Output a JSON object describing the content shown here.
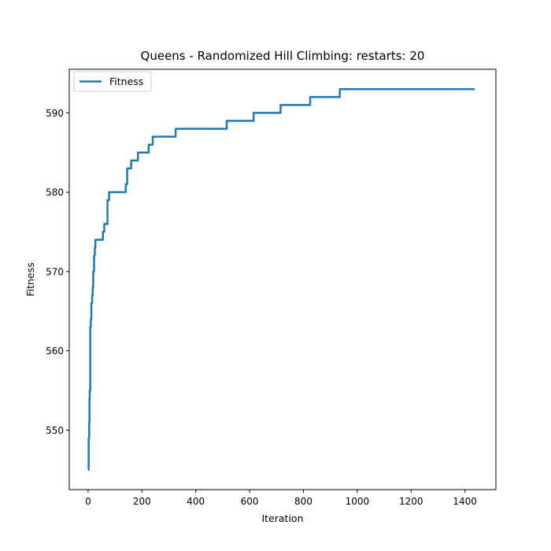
{
  "chart_data": {
    "type": "line",
    "title": "Queens - Randomized Hill Climbing: restarts: 20",
    "xlabel": "Iteration",
    "ylabel": "Fitness",
    "xlim": [
      -70,
      1515
    ],
    "ylim": [
      542.5,
      595.5
    ],
    "xticks": [
      0,
      200,
      400,
      600,
      800,
      1000,
      1200,
      1400
    ],
    "yticks": [
      550,
      560,
      570,
      580,
      590
    ],
    "grid": false,
    "legend": "top-left",
    "series": [
      {
        "name": "Fitness",
        "color": "#1f77b4",
        "x": [
          0,
          2,
          2,
          4,
          4,
          5,
          5,
          6,
          6,
          8,
          8,
          10,
          10,
          12,
          12,
          15,
          15,
          17,
          17,
          19,
          19,
          22,
          22,
          25,
          25,
          27,
          27,
          30,
          30,
          33,
          33,
          36,
          36,
          40,
          40,
          55,
          55,
          60,
          60,
          66,
          66,
          72,
          72,
          78,
          78,
          140,
          140,
          145,
          145,
          160,
          160,
          185,
          185,
          225,
          225,
          240,
          240,
          325,
          325,
          515,
          515,
          615,
          615,
          715,
          715,
          825,
          825,
          935,
          935,
          1436
        ],
        "y": [
          545,
          545,
          549,
          549,
          551,
          551,
          554,
          554,
          555,
          555,
          563,
          563,
          564,
          564,
          566,
          566,
          567,
          567,
          568,
          568,
          570,
          570,
          572,
          572,
          573,
          573,
          574,
          574,
          574,
          574,
          574,
          574,
          574,
          574,
          574,
          574,
          575,
          575,
          576,
          576,
          576,
          576,
          579,
          579,
          580,
          580,
          581,
          581,
          583,
          583,
          584,
          584,
          585,
          585,
          586,
          586,
          587,
          587,
          588,
          588,
          589,
          589,
          590,
          590,
          591,
          591,
          592,
          592,
          593,
          593
        ]
      }
    ]
  }
}
